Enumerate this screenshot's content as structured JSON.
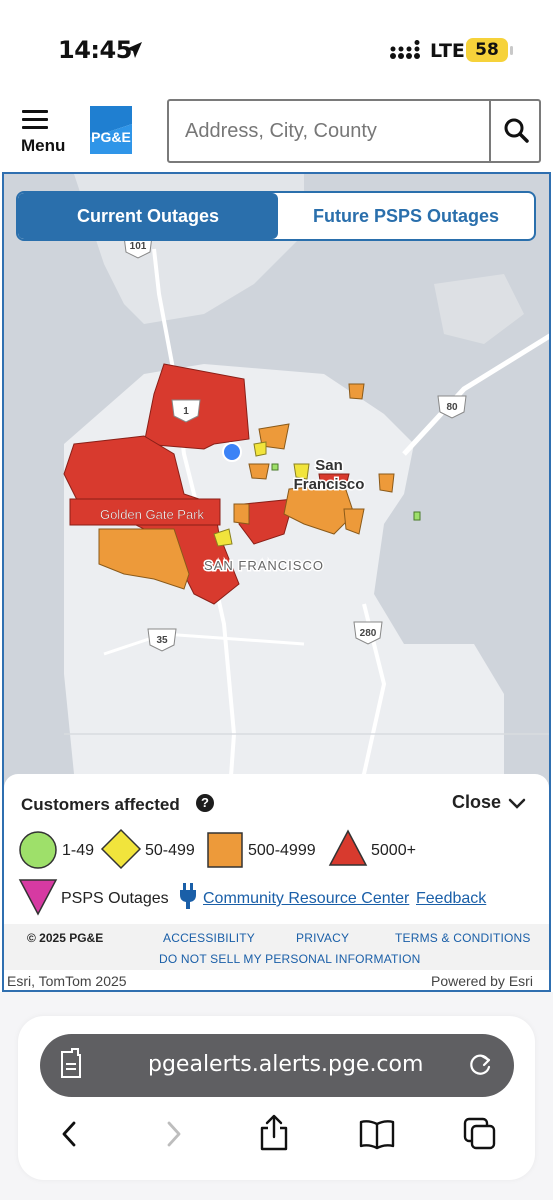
{
  "status_bar": {
    "time": "14:45",
    "network": "LTE",
    "battery": "58"
  },
  "header": {
    "menu_label": "Menu",
    "logo_text": "PG&E",
    "search_placeholder": "Address, City, County"
  },
  "tabs": [
    {
      "label": "Current Outages",
      "active": true
    },
    {
      "label": "Future PSPS Outages",
      "active": false
    }
  ],
  "map": {
    "labels": {
      "park": "Golden Gate Park",
      "city_line1": "San",
      "city_line2": "Francisco",
      "district": "SAN FRANCISCO"
    },
    "road_shields": [
      "101",
      "1",
      "80",
      "35",
      "280"
    ],
    "colors": {
      "red": "#d83a2e",
      "orange": "#ed9a3a",
      "yellow": "#f1e43c",
      "green": "#9ee06a",
      "pink": "#d63aa2",
      "location_dot": "#3b82f6"
    }
  },
  "legend": {
    "title": "Customers affected",
    "close_label": "Close",
    "items": [
      {
        "label": "1-49",
        "shape": "circle",
        "color": "#9ee06a"
      },
      {
        "label": "50-499",
        "shape": "diamond",
        "color": "#f1e43c"
      },
      {
        "label": "500-4999",
        "shape": "square",
        "color": "#ed9a3a"
      },
      {
        "label": "5000+",
        "shape": "triangle",
        "color": "#d83a2e"
      }
    ],
    "psps_label": "PSPS Outages",
    "community_link": "Community Resource Center",
    "feedback_link": "Feedback"
  },
  "footer": {
    "copyright": "© 2025 PG&E",
    "links": [
      "ACCESSIBILITY",
      "PRIVACY",
      "TERMS & CONDITIONS"
    ],
    "do_not_sell": "DO NOT SELL MY PERSONAL INFORMATION"
  },
  "attribution": {
    "left": "Esri, TomTom 2025",
    "right": "Powered by Esri"
  },
  "browser": {
    "url": "pgealerts.alerts.pge.com"
  }
}
